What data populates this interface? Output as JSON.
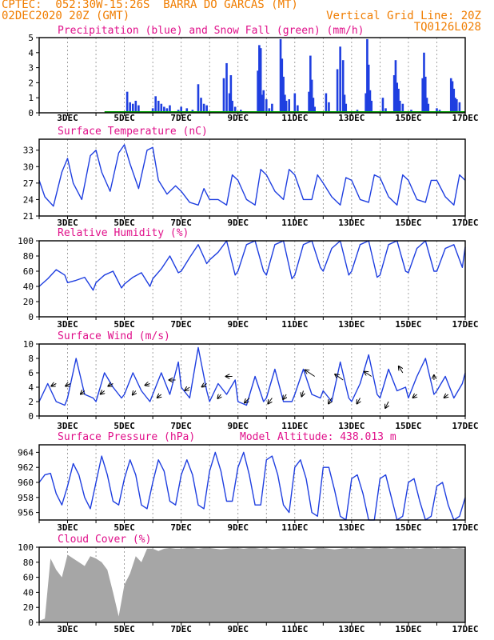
{
  "header": {
    "line1_left": "CPTEC:  052:30W-15:26S  BARRA DO GARCAS (MT)",
    "line2_left": "02DEC2020 20Z (GMT)",
    "line2_right": "Vertical Grid Line: 20Z",
    "line3_right": "TQ0126L028"
  },
  "colors": {
    "header": "#f07d00",
    "title": "#e0108a",
    "series": "#1f3fe0",
    "snow": "#00a000",
    "cloud": "#a6a6a6",
    "grid": "#8a8a8a"
  },
  "x_axis": {
    "start_day": 2,
    "end_day": 17,
    "tick_labels": [
      "3DEC",
      "5DEC",
      "7DEC",
      "9DEC",
      "11DEC",
      "13DEC",
      "15DEC",
      "17DEC"
    ]
  },
  "chart_data": [
    {
      "id": "precipitation",
      "type": "bar",
      "title": "Precipitation (blue) and Snow Fall (green) (mm/h)",
      "ylim": [
        0,
        5
      ],
      "yticks": [
        0,
        1,
        2,
        3,
        4,
        5
      ],
      "grid": true,
      "x": [
        5.1,
        5.2,
        5.3,
        5.4,
        5.5,
        6.0,
        6.1,
        6.2,
        6.3,
        6.4,
        6.5,
        6.6,
        6.9,
        7.0,
        7.2,
        7.4,
        7.6,
        7.7,
        7.8,
        7.9,
        8.5,
        8.6,
        8.7,
        8.75,
        8.8,
        8.9,
        9.1,
        9.7,
        9.75,
        9.8,
        9.85,
        9.9,
        10.0,
        10.1,
        10.2,
        10.5,
        10.55,
        10.6,
        10.65,
        10.7,
        10.8,
        11.0,
        11.1,
        11.5,
        11.55,
        11.6,
        11.65,
        11.7,
        12.1,
        12.2,
        12.5,
        12.6,
        12.7,
        12.75,
        12.8,
        13.2,
        13.5,
        13.55,
        13.6,
        13.65,
        13.7,
        14.1,
        14.2,
        14.5,
        14.55,
        14.6,
        14.65,
        14.7,
        14.8,
        15.1,
        15.5,
        15.55,
        15.6,
        15.65,
        15.7,
        16.0,
        16.1,
        16.5,
        16.55,
        16.6,
        16.65,
        16.7,
        16.8
      ],
      "values": [
        1.4,
        0.7,
        0.6,
        0.8,
        0.5,
        0.3,
        1.1,
        0.8,
        0.6,
        0.4,
        0.3,
        0.5,
        0.2,
        0.4,
        0.3,
        0.2,
        1.9,
        1.0,
        0.6,
        0.5,
        2.3,
        3.3,
        1.3,
        2.5,
        0.8,
        0.4,
        0.2,
        2.8,
        4.5,
        4.3,
        1.2,
        1.5,
        0.9,
        0.3,
        0.6,
        4.9,
        3.6,
        2.4,
        1.2,
        0.8,
        0.9,
        1.3,
        0.5,
        1.4,
        3.8,
        2.2,
        1.0,
        0.4,
        1.3,
        0.7,
        2.9,
        4.4,
        3.5,
        1.2,
        0.6,
        0.2,
        1.3,
        4.9,
        3.2,
        1.5,
        0.8,
        1.0,
        0.3,
        2.5,
        3.5,
        2.0,
        1.6,
        0.8,
        0.6,
        0.2,
        2.3,
        4.0,
        2.4,
        1.0,
        0.6,
        0.3,
        0.2,
        2.3,
        2.1,
        1.6,
        1.0,
        0.9,
        0.7
      ],
      "snow_values": 0
    },
    {
      "id": "temperature",
      "type": "line",
      "title": "Surface Temperature (nC)",
      "ylim": [
        21,
        35
      ],
      "yticks": [
        21,
        24,
        27,
        30,
        33
      ],
      "grid": true,
      "x": [
        2.0,
        2.2,
        2.5,
        2.8,
        3.0,
        3.2,
        3.5,
        3.8,
        4.0,
        4.2,
        4.5,
        4.8,
        5.0,
        5.2,
        5.5,
        5.8,
        6.0,
        6.2,
        6.5,
        6.8,
        7.0,
        7.3,
        7.6,
        7.8,
        8.0,
        8.3,
        8.6,
        8.8,
        9.0,
        9.3,
        9.6,
        9.8,
        10.0,
        10.3,
        10.6,
        10.8,
        11.0,
        11.3,
        11.6,
        11.8,
        12.0,
        12.3,
        12.6,
        12.8,
        13.0,
        13.3,
        13.6,
        13.8,
        14.0,
        14.3,
        14.6,
        14.8,
        15.0,
        15.3,
        15.6,
        15.8,
        16.0,
        16.3,
        16.6,
        16.8,
        17.0
      ],
      "values": [
        27.5,
        24.5,
        22.8,
        29.0,
        31.5,
        27.0,
        24.0,
        32.0,
        33.0,
        29.0,
        25.5,
        32.5,
        34.0,
        30.5,
        26.0,
        33.0,
        33.5,
        27.5,
        25.0,
        26.5,
        25.5,
        23.5,
        23.0,
        26.0,
        24.0,
        24.0,
        23.0,
        28.5,
        27.5,
        24.0,
        23.0,
        29.5,
        28.5,
        25.5,
        24.0,
        29.5,
        28.5,
        24.0,
        24.0,
        28.5,
        27.0,
        24.5,
        23.0,
        28.0,
        27.5,
        24.0,
        23.5,
        28.5,
        28.0,
        24.5,
        23.0,
        28.5,
        27.5,
        24.0,
        23.5,
        27.5,
        27.5,
        24.5,
        23.0,
        28.5,
        27.5
      ]
    },
    {
      "id": "humidity",
      "type": "line",
      "title": "Relative Humidity (%)",
      "ylim": [
        0,
        100
      ],
      "yticks": [
        0,
        20,
        40,
        60,
        80,
        100
      ],
      "grid": true,
      "x": [
        2.0,
        2.3,
        2.6,
        2.9,
        3.0,
        3.3,
        3.6,
        3.9,
        4.0,
        4.3,
        4.6,
        4.9,
        5.0,
        5.3,
        5.6,
        5.9,
        6.0,
        6.3,
        6.6,
        6.9,
        7.0,
        7.3,
        7.6,
        7.9,
        8.0,
        8.3,
        8.6,
        8.9,
        9.0,
        9.3,
        9.6,
        9.9,
        10.0,
        10.3,
        10.6,
        10.9,
        11.0,
        11.3,
        11.6,
        11.9,
        12.0,
        12.3,
        12.6,
        12.9,
        13.0,
        13.3,
        13.6,
        13.9,
        14.0,
        14.3,
        14.6,
        14.9,
        15.0,
        15.3,
        15.6,
        15.9,
        16.0,
        16.3,
        16.6,
        16.9,
        17.0
      ],
      "values": [
        40,
        50,
        62,
        55,
        45,
        48,
        52,
        35,
        45,
        55,
        60,
        38,
        43,
        52,
        58,
        40,
        50,
        63,
        80,
        58,
        60,
        78,
        95,
        70,
        75,
        85,
        100,
        55,
        60,
        95,
        100,
        60,
        55,
        95,
        100,
        50,
        55,
        95,
        100,
        65,
        60,
        90,
        100,
        55,
        60,
        95,
        100,
        52,
        55,
        95,
        100,
        60,
        58,
        90,
        100,
        60,
        60,
        90,
        95,
        65,
        92
      ]
    },
    {
      "id": "wind",
      "type": "line",
      "title": "Surface Wind (m/s)",
      "ylim": [
        0,
        10
      ],
      "yticks": [
        0,
        2,
        4,
        6,
        8,
        10
      ],
      "grid": true,
      "x": [
        2.0,
        2.3,
        2.6,
        2.9,
        3.0,
        3.3,
        3.6,
        3.9,
        4.0,
        4.3,
        4.6,
        4.9,
        5.0,
        5.3,
        5.6,
        5.9,
        6.0,
        6.3,
        6.6,
        6.9,
        7.0,
        7.3,
        7.6,
        7.9,
        8.0,
        8.3,
        8.6,
        8.9,
        9.0,
        9.3,
        9.6,
        9.9,
        10.0,
        10.3,
        10.6,
        10.9,
        11.0,
        11.3,
        11.6,
        11.9,
        12.0,
        12.3,
        12.6,
        12.9,
        13.0,
        13.3,
        13.6,
        13.9,
        14.0,
        14.3,
        14.6,
        14.9,
        15.0,
        15.3,
        15.6,
        15.9,
        16.0,
        16.3,
        16.6,
        16.9,
        17.0
      ],
      "values": [
        2.0,
        4.5,
        2.0,
        1.5,
        2.5,
        8.0,
        3.0,
        2.5,
        2.0,
        6.0,
        4.0,
        2.5,
        3.0,
        6.0,
        3.5,
        2.0,
        3.0,
        6.0,
        3.0,
        7.5,
        4.0,
        2.5,
        9.5,
        3.5,
        2.0,
        4.5,
        3.0,
        5.0,
        2.0,
        1.5,
        5.5,
        2.0,
        2.5,
        6.5,
        2.0,
        2.0,
        3.0,
        6.5,
        3.0,
        2.5,
        3.5,
        2.0,
        7.5,
        2.5,
        2.0,
        4.5,
        8.5,
        3.0,
        2.5,
        6.5,
        3.5,
        4.0,
        2.5,
        5.5,
        8.0,
        3.0,
        3.5,
        5.5,
        2.5,
        4.5,
        6.0
      ]
    },
    {
      "id": "pressure",
      "type": "line",
      "title": "Surface Pressure (hPa)",
      "subtitle": "Model Altitude: 438.013 m",
      "ylim": [
        955,
        965
      ],
      "yticks": [
        956,
        958,
        960,
        962,
        964
      ],
      "grid": true,
      "x": [
        2.0,
        2.2,
        2.4,
        2.6,
        2.8,
        3.0,
        3.2,
        3.4,
        3.6,
        3.8,
        4.0,
        4.2,
        4.4,
        4.6,
        4.8,
        5.0,
        5.2,
        5.4,
        5.6,
        5.8,
        6.0,
        6.2,
        6.4,
        6.6,
        6.8,
        7.0,
        7.2,
        7.4,
        7.6,
        7.8,
        8.0,
        8.2,
        8.4,
        8.6,
        8.8,
        9.0,
        9.2,
        9.4,
        9.6,
        9.8,
        10.0,
        10.2,
        10.4,
        10.6,
        10.8,
        11.0,
        11.2,
        11.4,
        11.6,
        11.8,
        12.0,
        12.2,
        12.4,
        12.6,
        12.8,
        13.0,
        13.2,
        13.4,
        13.6,
        13.8,
        14.0,
        14.2,
        14.4,
        14.6,
        14.8,
        15.0,
        15.2,
        15.4,
        15.6,
        15.8,
        16.0,
        16.2,
        16.4,
        16.6,
        16.8,
        17.0
      ],
      "values": [
        960.0,
        961.0,
        961.2,
        958.5,
        957.0,
        959.5,
        962.5,
        961.0,
        958.0,
        956.5,
        960.0,
        963.5,
        961.0,
        957.5,
        957.0,
        960.5,
        963.0,
        961.0,
        957.0,
        956.5,
        960.0,
        963.0,
        961.5,
        957.5,
        957.0,
        961.0,
        963.0,
        961.0,
        957.0,
        956.5,
        961.5,
        964.0,
        961.5,
        957.5,
        957.5,
        962.0,
        964.0,
        961.0,
        957.0,
        957.0,
        963.0,
        963.5,
        961.0,
        957.0,
        956.0,
        962.0,
        963.0,
        960.5,
        956.0,
        955.5,
        962.0,
        962.0,
        959.0,
        955.5,
        955.0,
        960.5,
        961.0,
        958.5,
        955.0,
        955.0,
        960.5,
        961.0,
        958.0,
        955.0,
        955.5,
        960.0,
        960.5,
        957.5,
        955.0,
        955.5,
        959.5,
        960.0,
        957.0,
        955.0,
        955.5,
        958.0
      ]
    },
    {
      "id": "cloud",
      "type": "area",
      "title": "Cloud Cover (%)",
      "ylim": [
        0,
        100
      ],
      "yticks": [
        0,
        20,
        40,
        60,
        80,
        100
      ],
      "grid": true,
      "x": [
        2.0,
        2.2,
        2.4,
        2.6,
        2.8,
        3.0,
        3.2,
        3.4,
        3.6,
        3.8,
        4.0,
        4.2,
        4.4,
        4.6,
        4.8,
        5.0,
        5.2,
        5.4,
        5.6,
        5.8,
        6.0,
        6.2,
        6.4,
        6.6,
        6.8,
        7.0,
        7.2,
        7.4,
        7.6,
        7.8,
        8.0,
        8.2,
        8.4,
        8.6,
        8.8,
        9.0,
        9.2,
        9.4,
        9.6,
        9.8,
        10.0,
        10.2,
        10.4,
        10.6,
        10.8,
        11.0,
        11.2,
        11.4,
        11.6,
        11.8,
        12.0,
        12.2,
        12.4,
        12.6,
        12.8,
        13.0,
        13.2,
        13.4,
        13.6,
        13.8,
        14.0,
        14.2,
        14.4,
        14.6,
        14.8,
        15.0,
        15.2,
        15.4,
        15.6,
        15.8,
        16.0,
        16.2,
        16.4,
        16.6,
        16.8,
        17.0
      ],
      "values": [
        2,
        5,
        85,
        70,
        60,
        90,
        85,
        80,
        75,
        88,
        85,
        80,
        70,
        40,
        8,
        50,
        65,
        88,
        80,
        98,
        98,
        95,
        98,
        99,
        98,
        98,
        99,
        99,
        98,
        99,
        99,
        98,
        97,
        98,
        99,
        99,
        98,
        99,
        99,
        98,
        99,
        97,
        98,
        99,
        98,
        98,
        99,
        98,
        97,
        99,
        99,
        98,
        97,
        98,
        99,
        98,
        99,
        99,
        98,
        99,
        99,
        99,
        98,
        99,
        99,
        98,
        99,
        98,
        99,
        99,
        98,
        99,
        99,
        98,
        99,
        98
      ]
    }
  ],
  "wind_arrows": [
    {
      "d": 2.6,
      "y": 4.5,
      "dx": -6,
      "dy": 3
    },
    {
      "d": 3.1,
      "y": 4.5,
      "dx": -6,
      "dy": 3
    },
    {
      "d": 3.6,
      "y": 3.5,
      "dx": -5,
      "dy": 4
    },
    {
      "d": 4.3,
      "y": 3.5,
      "dx": -5,
      "dy": 4
    },
    {
      "d": 4.6,
      "y": 4.5,
      "dx": -6,
      "dy": 3
    },
    {
      "d": 5.4,
      "y": 3.5,
      "dx": -4,
      "dy": 5
    },
    {
      "d": 5.9,
      "y": 4.5,
      "dx": -6,
      "dy": 2
    },
    {
      "d": 6.3,
      "y": 3.0,
      "dx": -5,
      "dy": 4
    },
    {
      "d": 6.8,
      "y": 5.0,
      "dx": -8,
      "dy": 0
    },
    {
      "d": 7.3,
      "y": 4.0,
      "dx": -6,
      "dy": 4
    },
    {
      "d": 7.9,
      "y": 4.5,
      "dx": -6,
      "dy": 4
    },
    {
      "d": 8.4,
      "y": 3.0,
      "dx": -4,
      "dy": 5
    },
    {
      "d": 8.8,
      "y": 5.5,
      "dx": -8,
      "dy": 0
    },
    {
      "d": 9.4,
      "y": 2.5,
      "dx": -6,
      "dy": 6
    },
    {
      "d": 10.2,
      "y": 2.5,
      "dx": -5,
      "dy": 7
    },
    {
      "d": 10.7,
      "y": 3.0,
      "dx": -4,
      "dy": 6
    },
    {
      "d": 11.3,
      "y": 3.5,
      "dx": -2,
      "dy": 7
    },
    {
      "d": 11.7,
      "y": 5.5,
      "dx": -12,
      "dy": -8
    },
    {
      "d": 12.3,
      "y": 2.5,
      "dx": -4,
      "dy": 7
    },
    {
      "d": 12.7,
      "y": 5.0,
      "dx": -10,
      "dy": -7
    },
    {
      "d": 13.3,
      "y": 2.5,
      "dx": -4,
      "dy": 7
    },
    {
      "d": 13.7,
      "y": 5.5,
      "dx": -9,
      "dy": -6
    },
    {
      "d": 14.3,
      "y": 2.0,
      "dx": -4,
      "dy": 8
    },
    {
      "d": 14.8,
      "y": 6.0,
      "dx": -5,
      "dy": -8
    },
    {
      "d": 15.3,
      "y": 3.0,
      "dx": -5,
      "dy": 4
    },
    {
      "d": 15.9,
      "y": 5.0,
      "dx": 0,
      "dy": -6
    },
    {
      "d": 16.4,
      "y": 3.0,
      "dx": -5,
      "dy": 4
    }
  ]
}
